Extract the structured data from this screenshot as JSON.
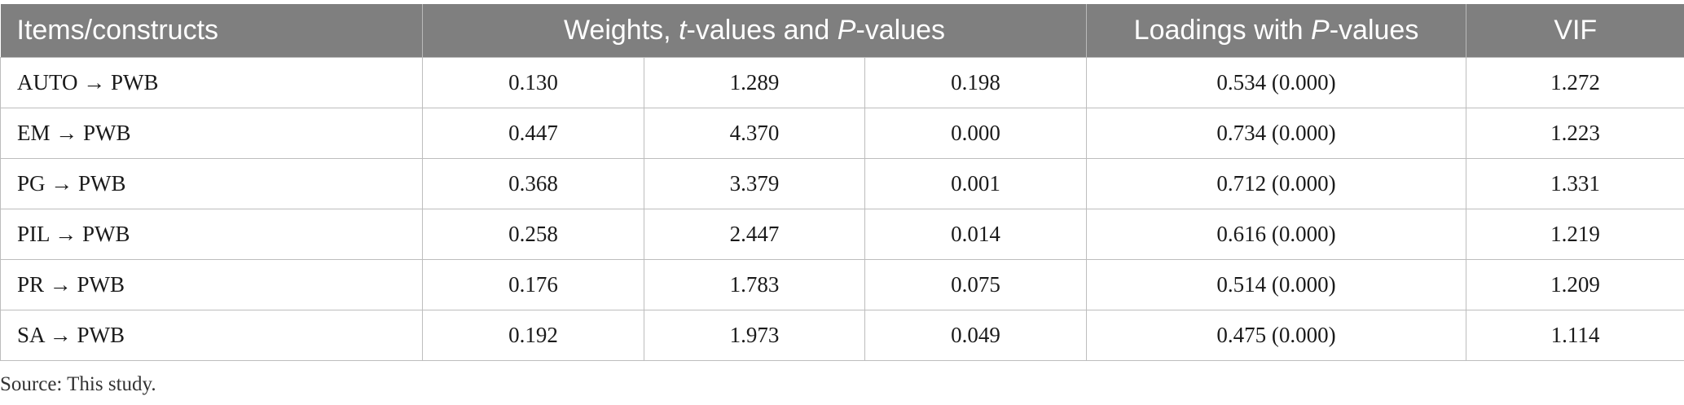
{
  "table": {
    "headers": {
      "items": "Items/constructs",
      "weights_pre": "Weights, ",
      "weights_t": "t",
      "weights_mid": "-values and ",
      "weights_p": "P",
      "weights_post": "-values",
      "loadings_pre": "Loadings with ",
      "loadings_p": "P",
      "loadings_post": "-values",
      "vif": "VIF"
    },
    "rows": [
      {
        "construct": "AUTO → PWB",
        "weight": "0.130",
        "t_value": "1.289",
        "p_value": "0.198",
        "loading": "0.534 (0.000)",
        "vif": "1.272"
      },
      {
        "construct": "EM → PWB",
        "weight": "0.447",
        "t_value": "4.370",
        "p_value": "0.000",
        "loading": "0.734 (0.000)",
        "vif": "1.223"
      },
      {
        "construct": "PG → PWB",
        "weight": "0.368",
        "t_value": "3.379",
        "p_value": "0.001",
        "loading": "0.712 (0.000)",
        "vif": "1.331"
      },
      {
        "construct": "PIL → PWB",
        "weight": "0.258",
        "t_value": "2.447",
        "p_value": "0.014",
        "loading": "0.616 (0.000)",
        "vif": "1.219"
      },
      {
        "construct": "PR → PWB",
        "weight": "0.176",
        "t_value": "1.783",
        "p_value": "0.075",
        "loading": "0.514 (0.000)",
        "vif": "1.209"
      },
      {
        "construct": "SA → PWB",
        "weight": "0.192",
        "t_value": "1.973",
        "p_value": "0.049",
        "loading": "0.475 (0.000)",
        "vif": "1.114"
      }
    ]
  },
  "footnote": "Source: This study.",
  "colors": {
    "header_bg": "#7f7f7f",
    "header_text": "#ffffff",
    "border": "#bdbdbd"
  }
}
